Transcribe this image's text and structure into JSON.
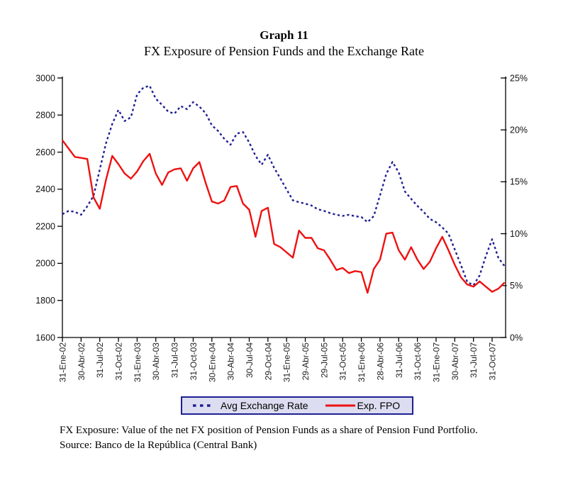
{
  "chart_data": {
    "type": "line",
    "title": "Graph 11",
    "subtitle": "FX Exposure of Pension Funds and the Exchange Rate",
    "x_frequency": "monthly",
    "x_tick_every": 3,
    "x_tick_labels": [
      "31-Ene-02",
      "30-Abr-02",
      "31-Jul-02",
      "31-Oct-02",
      "31-Ene-03",
      "30-Abr-03",
      "31-Jul-03",
      "31-Oct-03",
      "30-Ene-04",
      "30-Abr-04",
      "30-Jul-04",
      "29-Oct-04",
      "31-Ene-05",
      "29-Abr-05",
      "29-Jul-05",
      "31-Oct-05",
      "31-Ene-06",
      "28-Abr-06",
      "31-Jul-06",
      "31-Oct-06",
      "31-Ene-07",
      "30-Abr-07",
      "31-Jul-07",
      "31-Oct-07"
    ],
    "left_axis": {
      "min": 1600,
      "max": 3000,
      "step": 200,
      "tick_labels": [
        "3000",
        "2800",
        "2600",
        "2400",
        "2200",
        "2000",
        "1800",
        "1600"
      ]
    },
    "right_axis": {
      "min": 0,
      "max": 25,
      "step": 5,
      "tick_labels": [
        "0%",
        "5%",
        "10%",
        "15%",
        "20%",
        "25%"
      ]
    },
    "grid": false,
    "legend_position": "bottom",
    "series": [
      {
        "name": "Avg Exchange Rate",
        "axis": "left",
        "line_style": "dashed",
        "color": "#1f1f93",
        "values": [
          2265,
          2283,
          2278,
          2262,
          2308,
          2364,
          2506,
          2648,
          2752,
          2828,
          2768,
          2788,
          2912,
          2948,
          2958,
          2888,
          2855,
          2818,
          2808,
          2848,
          2832,
          2870,
          2846,
          2810,
          2745,
          2714,
          2672,
          2640,
          2700,
          2708,
          2652,
          2580,
          2532,
          2586,
          2515,
          2458,
          2398,
          2340,
          2330,
          2322,
          2312,
          2292,
          2283,
          2271,
          2262,
          2256,
          2262,
          2254,
          2250,
          2222,
          2255,
          2367,
          2482,
          2547,
          2490,
          2388,
          2348,
          2310,
          2278,
          2240,
          2222,
          2194,
          2160,
          2075,
          1990,
          1900,
          1882,
          1935,
          2040,
          2130,
          2030,
          1985
        ]
      },
      {
        "name": "Exp. FPO",
        "axis": "right",
        "line_style": "solid",
        "color": "#ee1111",
        "values": [
          19.0,
          18.2,
          17.4,
          17.3,
          17.2,
          13.5,
          12.4,
          15.2,
          17.5,
          16.7,
          15.8,
          15.3,
          16.0,
          17.0,
          17.7,
          15.8,
          14.7,
          15.9,
          16.2,
          16.3,
          15.1,
          16.3,
          16.9,
          14.9,
          13.1,
          12.9,
          13.2,
          14.5,
          14.6,
          12.9,
          12.3,
          9.7,
          12.2,
          12.5,
          9.0,
          8.7,
          8.2,
          7.7,
          10.3,
          9.6,
          9.6,
          8.6,
          8.4,
          7.5,
          6.5,
          6.7,
          6.2,
          6.4,
          6.3,
          4.3,
          6.6,
          7.5,
          10.0,
          10.1,
          8.4,
          7.5,
          8.7,
          7.5,
          6.6,
          7.3,
          8.6,
          9.7,
          8.4,
          7.0,
          5.8,
          5.1,
          4.9,
          5.4,
          4.9,
          4.4,
          4.7,
          5.3
        ]
      }
    ]
  },
  "legend": {
    "border_color": "#1f1f93",
    "background": "#dcddf0",
    "items": [
      {
        "label": "Avg Exchange Rate",
        "color": "#1f1f93",
        "style": "dashed"
      },
      {
        "label": "Exp. FPO",
        "color": "#ee1111",
        "style": "solid"
      }
    ]
  },
  "footnote": {
    "definition": "FX Exposure: Value of the net FX position of Pension Funds as a share of Pension Fund Portfolio.",
    "source": "Source: Banco de la República (Central Bank)"
  }
}
